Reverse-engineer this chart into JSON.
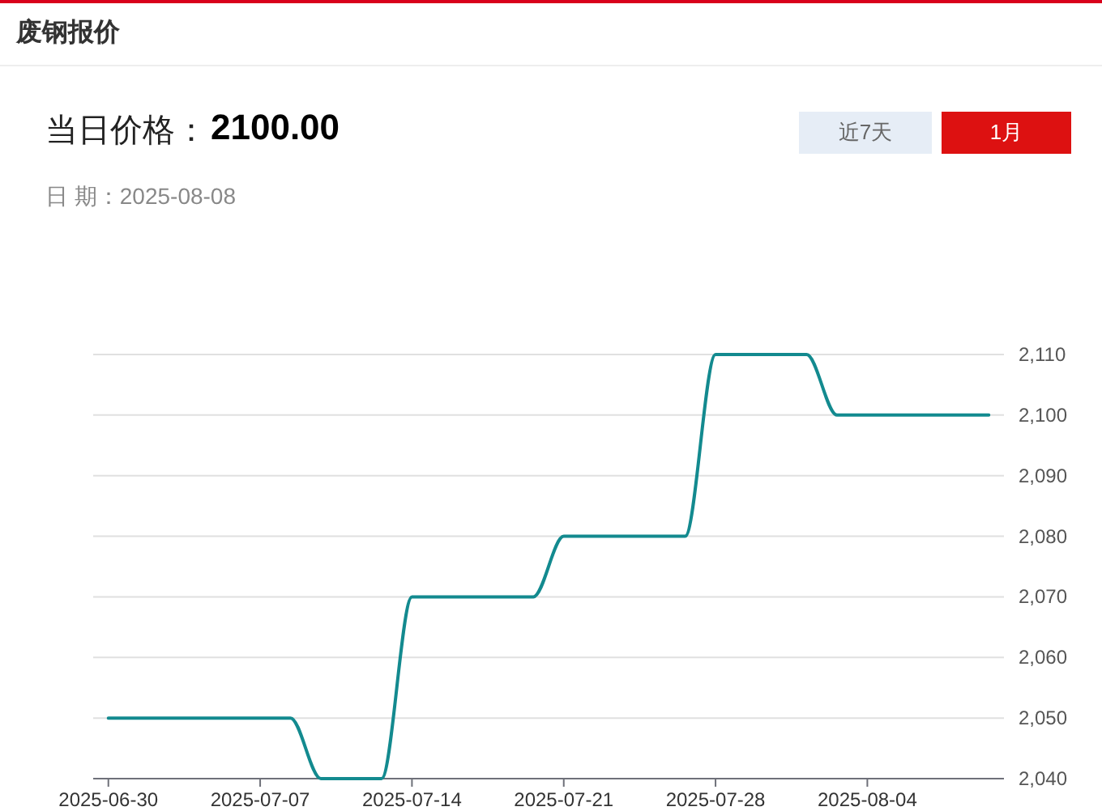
{
  "chart_data": {
    "type": "line",
    "title": "废钢报价",
    "annotations": [
      "当日价格：",
      "2100.00",
      "日 期：2025-08-08",
      "近7天",
      "1月"
    ],
    "categories": [
      "2025-06-30",
      null,
      null,
      null,
      null,
      "2025-07-07",
      null,
      null,
      null,
      null,
      "2025-07-14",
      null,
      null,
      null,
      null,
      "2025-07-21",
      null,
      null,
      null,
      null,
      "2025-07-28",
      null,
      null,
      null,
      null,
      "2025-08-04",
      null,
      null,
      null,
      null
    ],
    "series": [
      {
        "color": "#138a8f",
        "values": [
          2050,
          2050,
          2050,
          2050,
          2050,
          2050,
          2050,
          2040,
          2040,
          2040,
          2070,
          2070,
          2070,
          2070,
          2070,
          2080,
          2080,
          2080,
          2080,
          2080,
          2110,
          2110,
          2110,
          2110,
          2100,
          2100,
          2100,
          2100,
          2100,
          2100
        ]
      }
    ],
    "ylim": [
      2040,
      2110
    ],
    "yticks": [
      {
        "value": 2040,
        "label": "2,040"
      },
      {
        "value": 2050,
        "label": "2,050"
      },
      {
        "value": 2060,
        "label": "2,060"
      },
      {
        "value": 2070,
        "label": "2,070"
      },
      {
        "value": 2080,
        "label": "2,080"
      },
      {
        "value": 2090,
        "label": "2,090"
      },
      {
        "value": 2100,
        "label": "2,100"
      },
      {
        "value": 2110,
        "label": "2,110"
      }
    ],
    "grid": "y",
    "line_style": "solid"
  }
}
